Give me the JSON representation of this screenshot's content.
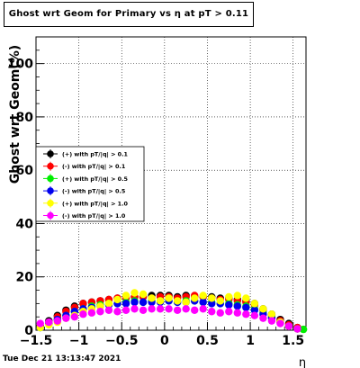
{
  "title": "Ghost wrt Geom for Primary vs   η at pT > 0.11",
  "timestamp": "Tue Dec 21 13:13:47 2021",
  "chart_data": {
    "type": "scatter",
    "xlabel": "η",
    "ylabel": "Ghost wrt Geom(%)",
    "xlim": [
      -1.5,
      1.65
    ],
    "ylim": [
      0,
      110
    ],
    "xticks": [
      -1.5,
      -1,
      -0.5,
      0,
      0.5,
      1,
      1.5
    ],
    "xtick_labels": [
      "−1.5",
      "−1",
      "−0.5",
      "0",
      "0.5",
      "1",
      "1.5"
    ],
    "yticks": [
      0,
      20,
      40,
      60,
      80,
      100
    ],
    "ytick_labels": [
      "0",
      "20",
      "40",
      "60",
      "80",
      "100"
    ],
    "grid": true,
    "legend_position": "center-left",
    "series": [
      {
        "name": "(+) with pT/|q| > 0.1",
        "color": "#000000",
        "x": [
          -1.45,
          -1.35,
          -1.25,
          -1.15,
          -1.05,
          -0.95,
          -0.85,
          -0.75,
          -0.65,
          -0.55,
          -0.45,
          -0.35,
          -0.25,
          -0.15,
          -0.05,
          0.05,
          0.15,
          0.25,
          0.35,
          0.45,
          0.55,
          0.65,
          0.75,
          0.85,
          0.95,
          1.05,
          1.15,
          1.25,
          1.35,
          1.45,
          1.55
        ],
        "y": [
          1.5,
          3.5,
          5.5,
          7.5,
          9,
          10,
          10.5,
          11,
          11.5,
          12,
          12.5,
          12.5,
          12.5,
          13,
          13,
          13,
          12.5,
          13,
          12.5,
          12.5,
          12.5,
          12,
          12,
          11.5,
          11,
          10,
          8,
          6,
          4,
          2.5,
          1
        ]
      },
      {
        "name": "(-) with pT/|q| > 0.1",
        "color": "#ff0000",
        "x": [
          -1.45,
          -1.35,
          -1.25,
          -1.15,
          -1.05,
          -0.95,
          -0.85,
          -0.75,
          -0.65,
          -0.55,
          -0.45,
          -0.35,
          -0.25,
          -0.15,
          -0.05,
          0.05,
          0.15,
          0.25,
          0.35,
          0.45,
          0.55,
          0.65,
          0.75,
          0.85,
          0.95,
          1.05,
          1.15,
          1.25,
          1.35,
          1.45,
          1.55
        ],
        "y": [
          1.5,
          3,
          5,
          7,
          8.5,
          10,
          10.5,
          11,
          11.5,
          12,
          12,
          12.5,
          12.5,
          12,
          12.5,
          12.5,
          12,
          12.5,
          13,
          12.5,
          12,
          11.5,
          11.5,
          11,
          10.5,
          9.5,
          7.5,
          5.5,
          3.5,
          2,
          1
        ]
      },
      {
        "name": "(+) with pT/|q| > 0.5",
        "color": "#00ee00",
        "x": [
          -1.45,
          -1.35,
          -1.25,
          -1.15,
          -1.05,
          -0.95,
          -0.85,
          -0.75,
          -0.65,
          -0.55,
          -0.45,
          -0.35,
          -0.25,
          -0.15,
          -0.05,
          0.05,
          0.15,
          0.25,
          0.35,
          0.45,
          0.55,
          0.65,
          0.75,
          0.85,
          0.95,
          1.05,
          1.15,
          1.25,
          1.35,
          1.45,
          1.55,
          1.62
        ],
        "y": [
          1,
          2.5,
          4,
          5.5,
          7,
          8,
          9,
          9.5,
          10,
          10,
          10.5,
          11,
          10.5,
          11,
          11,
          11,
          10.5,
          11,
          11,
          10.5,
          10.5,
          10,
          10,
          9.5,
          9,
          8,
          6.5,
          5,
          3,
          1.5,
          0.5,
          0.3
        ]
      },
      {
        "name": "(-) with pT/|q| > 0.5",
        "color": "#0000ee",
        "x": [
          -1.45,
          -1.35,
          -1.25,
          -1.15,
          -1.05,
          -0.95,
          -0.85,
          -0.75,
          -0.65,
          -0.55,
          -0.45,
          -0.35,
          -0.25,
          -0.15,
          -0.05,
          0.05,
          0.15,
          0.25,
          0.35,
          0.45,
          0.55,
          0.65,
          0.75,
          0.85,
          0.95,
          1.05,
          1.15,
          1.25,
          1.35,
          1.45,
          1.55
        ],
        "y": [
          1,
          2.5,
          4,
          5.5,
          7,
          8,
          8.5,
          9,
          9.5,
          10,
          10,
          10.5,
          10.5,
          10.5,
          10.5,
          11,
          10.5,
          10.5,
          11,
          10.5,
          10,
          10,
          9.5,
          9,
          8.5,
          7.5,
          6,
          4.5,
          3,
          1.5,
          0.5
        ]
      },
      {
        "name": "(+) with pT/|q| > 1.0",
        "color": "#ffff00",
        "x": [
          -1.45,
          -1.35,
          -1.25,
          -1.15,
          -1.05,
          -0.95,
          -0.85,
          -0.75,
          -0.65,
          -0.55,
          -0.45,
          -0.35,
          -0.25,
          -0.15,
          -0.05,
          0.05,
          0.15,
          0.25,
          0.35,
          0.45,
          0.55,
          0.65,
          0.75,
          0.85,
          0.95,
          1.05,
          1.15,
          1.25,
          1.35,
          1.45,
          1.55
        ],
        "y": [
          1,
          2,
          3,
          4.5,
          5.5,
          7,
          8,
          9,
          10,
          11.5,
          13,
          14,
          13.5,
          12,
          11,
          12,
          11,
          10.5,
          12,
          13,
          12,
          11,
          12.5,
          13,
          12,
          10,
          8,
          6,
          3,
          1.5,
          0.5
        ]
      },
      {
        "name": "(-) with pT/|q| > 1.0",
        "color": "#ff00ff",
        "x": [
          -1.45,
          -1.35,
          -1.25,
          -1.15,
          -1.05,
          -0.95,
          -0.85,
          -0.75,
          -0.65,
          -0.55,
          -0.45,
          -0.35,
          -0.25,
          -0.15,
          -0.05,
          0.05,
          0.15,
          0.25,
          0.35,
          0.45,
          0.55,
          0.65,
          0.75,
          0.85,
          0.95,
          1.05,
          1.15,
          1.25,
          1.35,
          1.45,
          1.55
        ],
        "y": [
          2.5,
          3,
          3.5,
          4.5,
          5,
          6,
          6.5,
          7,
          7.5,
          7,
          7.5,
          8,
          7.5,
          8,
          8,
          8,
          7.5,
          8,
          7.5,
          8,
          7,
          6.5,
          7,
          6.5,
          6,
          5.5,
          4.5,
          3.5,
          2.5,
          1.5,
          0.5
        ]
      }
    ]
  }
}
